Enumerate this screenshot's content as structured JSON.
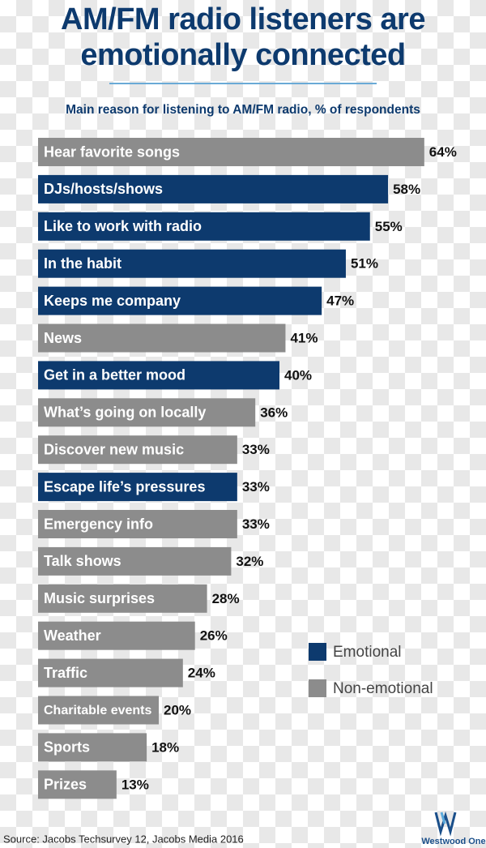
{
  "chart_data": {
    "type": "bar",
    "orientation": "horizontal",
    "title": "AM/FM radio listeners are emotionally connected",
    "subtitle": "Main reason for listening to AM/FM radio, % of respondents",
    "categories": [
      "Hear favorite songs",
      "DJs/hosts/shows",
      "Like to work with radio",
      "In the habit",
      "Keeps me company",
      "News",
      "Get in a better mood",
      "What’s going on locally",
      "Discover new music",
      "Escape life’s pressures",
      "Emergency info",
      "Talk shows",
      "Music surprises",
      "Weather",
      "Traffic",
      "Charitable events",
      "Sports",
      "Prizes"
    ],
    "series": [
      {
        "name": "Emotional",
        "color": "#0d3a6e",
        "values": [
          null,
          58,
          55,
          51,
          47,
          null,
          40,
          null,
          null,
          33,
          null,
          null,
          null,
          null,
          null,
          null,
          null,
          null
        ],
        "value_labels": [
          null,
          "58%",
          "55%",
          "51%",
          "47%",
          null,
          "40%",
          null,
          null,
          "33%",
          null,
          null,
          null,
          null,
          null,
          null,
          null,
          null
        ]
      },
      {
        "name": "Non-emotional",
        "color": "#8c8c8c",
        "values": [
          64,
          null,
          null,
          null,
          null,
          41,
          null,
          36,
          33,
          null,
          33,
          32,
          28,
          26,
          24,
          20,
          18,
          13
        ],
        "value_labels": [
          "64%",
          null,
          null,
          null,
          null,
          "41%",
          null,
          "36%",
          "33%",
          null,
          "33%",
          "32%",
          "28%",
          "26%",
          "24%",
          "20%",
          "18%",
          "13%"
        ]
      }
    ],
    "source": "Source: Jacobs Techsurvey 12, Jacobs Media 2016",
    "logo": "Westwood One"
  }
}
